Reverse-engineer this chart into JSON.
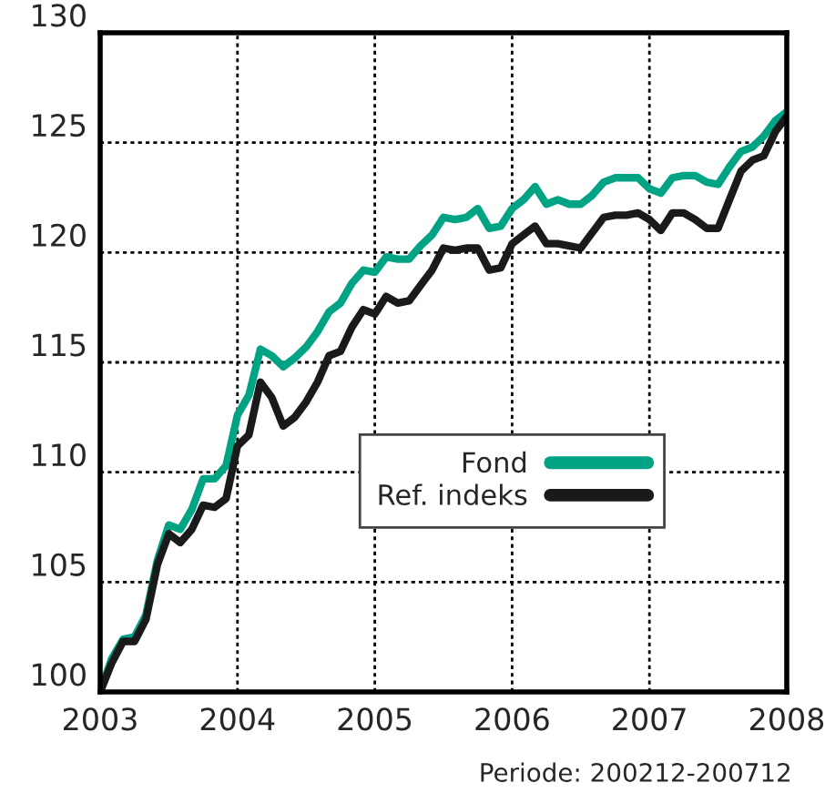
{
  "chart_data": {
    "type": "line",
    "x": [
      2003.0,
      2003.083,
      2003.167,
      2003.25,
      2003.333,
      2003.417,
      2003.5,
      2003.583,
      2003.667,
      2003.75,
      2003.833,
      2003.917,
      2004.0,
      2004.083,
      2004.167,
      2004.25,
      2004.333,
      2004.417,
      2004.5,
      2004.583,
      2004.667,
      2004.75,
      2004.833,
      2004.917,
      2005.0,
      2005.083,
      2005.167,
      2005.25,
      2005.333,
      2005.417,
      2005.5,
      2005.583,
      2005.667,
      2005.75,
      2005.833,
      2005.917,
      2006.0,
      2006.083,
      2006.167,
      2006.25,
      2006.333,
      2006.417,
      2006.5,
      2006.583,
      2006.667,
      2006.75,
      2006.833,
      2006.917,
      2007.0,
      2007.083,
      2007.167,
      2007.25,
      2007.333,
      2007.417,
      2007.5,
      2007.583,
      2007.667,
      2007.75,
      2007.833,
      2007.917,
      2008.0
    ],
    "series": [
      {
        "name": "Fond",
        "color": "#00a383",
        "values": [
          100,
          101.5,
          102.4,
          102.5,
          103.5,
          106,
          107.6,
          107.4,
          108.3,
          109.7,
          109.7,
          110.3,
          112.6,
          113.5,
          115.6,
          115.3,
          114.8,
          115.2,
          115.7,
          116.4,
          117.3,
          117.7,
          118.6,
          119.2,
          119.1,
          119.8,
          119.7,
          119.7,
          120.3,
          120.8,
          121.6,
          121.5,
          121.6,
          122.0,
          121.1,
          121.2,
          122.0,
          122.4,
          123.0,
          122.2,
          122.4,
          122.2,
          122.2,
          122.6,
          123.2,
          123.4,
          123.4,
          123.4,
          122.9,
          122.7,
          123.4,
          123.5,
          123.5,
          123.2,
          123.1,
          123.9,
          124.6,
          124.8,
          125.3,
          126.0,
          126.4
        ]
      },
      {
        "name": "Ref. indeks",
        "color": "#1a1a1a",
        "values": [
          100,
          101.3,
          102.3,
          102.3,
          103.3,
          105.8,
          107.2,
          106.8,
          107.4,
          108.5,
          108.4,
          108.8,
          111.2,
          111.7,
          114.1,
          113.4,
          112.1,
          112.5,
          113.2,
          114.1,
          115.3,
          115.5,
          116.6,
          117.4,
          117.2,
          118.0,
          117.7,
          117.8,
          118.5,
          119.2,
          120.2,
          120.1,
          120.2,
          120.2,
          119.2,
          119.3,
          120.4,
          120.8,
          121.2,
          120.4,
          120.4,
          120.3,
          120.2,
          120.9,
          121.6,
          121.7,
          121.7,
          121.8,
          121.5,
          121.0,
          121.8,
          121.8,
          121.5,
          121.1,
          121.1,
          122.4,
          123.7,
          124.2,
          124.4,
          125.5,
          126.2
        ]
      }
    ],
    "xlim": [
      2003,
      2008
    ],
    "xticks": [
      2003,
      2004,
      2005,
      2006,
      2007,
      2008
    ],
    "ylim": [
      100,
      130
    ],
    "yticks": [
      100,
      105,
      110,
      115,
      120,
      125,
      130
    ],
    "grid": true,
    "legend": "center",
    "line_style": "solid",
    "annotations": [
      "Periode: 200212-200712"
    ]
  }
}
